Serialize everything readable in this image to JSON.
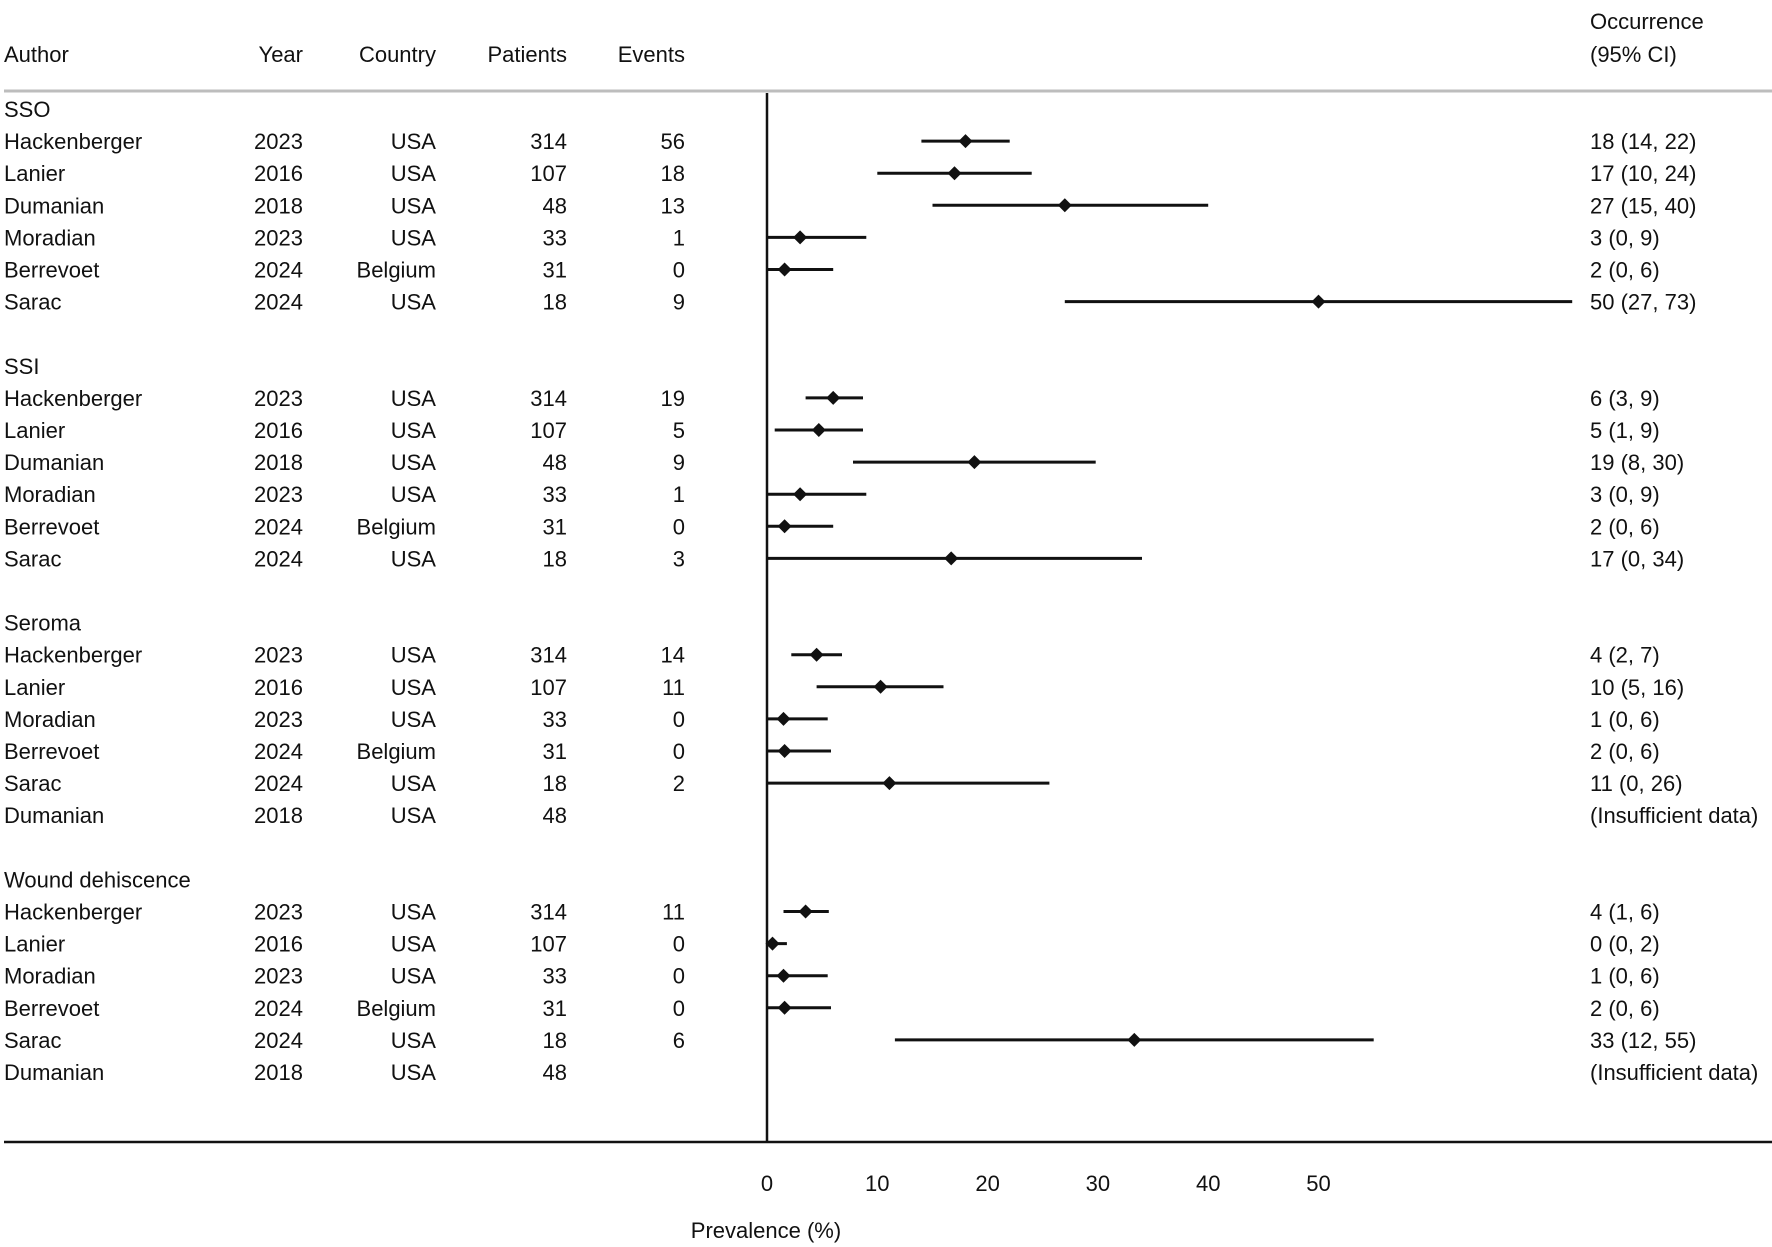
{
  "columns": {
    "author": "Author",
    "year": "Year",
    "country": "Country",
    "patients": "Patients",
    "events": "Events",
    "occurrence_line1": "Occurrence",
    "occurrence_line2": "(95% CI)"
  },
  "chart_data": {
    "type": "forest",
    "xlabel": "Prevalence (%)",
    "xlim": [
      0,
      73
    ],
    "xticks": [
      0,
      10,
      20,
      30,
      40,
      50
    ],
    "grid": false,
    "groups": [
      {
        "name": "SSO",
        "rows": [
          {
            "author": "Hackenberger",
            "year": "2023",
            "country": "USA",
            "patients": "314",
            "events": "56",
            "est": 18,
            "lo": 14,
            "hi": 22,
            "label": "18 (14, 22)"
          },
          {
            "author": "Lanier",
            "year": "2016",
            "country": "USA",
            "patients": "107",
            "events": "18",
            "est": 17,
            "lo": 10,
            "hi": 24,
            "label": "17 (10, 24)"
          },
          {
            "author": "Dumanian",
            "year": "2018",
            "country": "USA",
            "patients": "48",
            "events": "13",
            "est": 27,
            "lo": 15,
            "hi": 40,
            "label": "27 (15, 40)"
          },
          {
            "author": "Moradian",
            "year": "2023",
            "country": "USA",
            "patients": "33",
            "events": "1",
            "est": 3,
            "lo": 0,
            "hi": 9,
            "label": "3 (0, 9)"
          },
          {
            "author": "Berrevoet",
            "year": "2024",
            "country": "Belgium",
            "patients": "31",
            "events": "0",
            "est": 1.6,
            "lo": 0,
            "hi": 6,
            "label": "2 (0, 6)"
          },
          {
            "author": "Sarac",
            "year": "2024",
            "country": "USA",
            "patients": "18",
            "events": "9",
            "est": 50,
            "lo": 27,
            "hi": 73,
            "label": "50 (27, 73)"
          }
        ]
      },
      {
        "name": "SSI",
        "rows": [
          {
            "author": "Hackenberger",
            "year": "2023",
            "country": "USA",
            "patients": "314",
            "events": "19",
            "est": 6,
            "lo": 3.5,
            "hi": 8.7,
            "label": "6 (3, 9)"
          },
          {
            "author": "Lanier",
            "year": "2016",
            "country": "USA",
            "patients": "107",
            "events": "5",
            "est": 4.7,
            "lo": 0.7,
            "hi": 8.7,
            "label": "5 (1, 9)"
          },
          {
            "author": "Dumanian",
            "year": "2018",
            "country": "USA",
            "patients": "48",
            "events": "9",
            "est": 18.8,
            "lo": 7.8,
            "hi": 29.8,
            "label": "19 (8, 30)"
          },
          {
            "author": "Moradian",
            "year": "2023",
            "country": "USA",
            "patients": "33",
            "events": "1",
            "est": 3,
            "lo": 0,
            "hi": 9,
            "label": "3 (0, 9)"
          },
          {
            "author": "Berrevoet",
            "year": "2024",
            "country": "Belgium",
            "patients": "31",
            "events": "0",
            "est": 1.6,
            "lo": 0,
            "hi": 6,
            "label": "2 (0, 6)"
          },
          {
            "author": "Sarac",
            "year": "2024",
            "country": "USA",
            "patients": "18",
            "events": "3",
            "est": 16.7,
            "lo": 0,
            "hi": 34,
            "label": "17 (0, 34)"
          }
        ]
      },
      {
        "name": "Seroma",
        "rows": [
          {
            "author": "Hackenberger",
            "year": "2023",
            "country": "USA",
            "patients": "314",
            "events": "14",
            "est": 4.5,
            "lo": 2.2,
            "hi": 6.8,
            "label": "4 (2, 7)"
          },
          {
            "author": "Lanier",
            "year": "2016",
            "country": "USA",
            "patients": "107",
            "events": "11",
            "est": 10.3,
            "lo": 4.5,
            "hi": 16,
            "label": "10 (5, 16)"
          },
          {
            "author": "Moradian",
            "year": "2023",
            "country": "USA",
            "patients": "33",
            "events": "0",
            "est": 1.5,
            "lo": 0,
            "hi": 5.5,
            "label": "1 (0, 6)"
          },
          {
            "author": "Berrevoet",
            "year": "2024",
            "country": "Belgium",
            "patients": "31",
            "events": "0",
            "est": 1.6,
            "lo": 0,
            "hi": 5.8,
            "label": "2 (0, 6)"
          },
          {
            "author": "Sarac",
            "year": "2024",
            "country": "USA",
            "patients": "18",
            "events": "2",
            "est": 11.1,
            "lo": 0,
            "hi": 25.6,
            "label": "11 (0, 26)"
          },
          {
            "author": "Dumanian",
            "year": "2018",
            "country": "USA",
            "patients": "48",
            "events": "",
            "est": null,
            "lo": null,
            "hi": null,
            "label": "(Insufficient data)"
          }
        ]
      },
      {
        "name": "Wound dehiscence",
        "rows": [
          {
            "author": "Hackenberger",
            "year": "2023",
            "country": "USA",
            "patients": "314",
            "events": "11",
            "est": 3.5,
            "lo": 1.5,
            "hi": 5.6,
            "label": "4 (1, 6)"
          },
          {
            "author": "Lanier",
            "year": "2016",
            "country": "USA",
            "patients": "107",
            "events": "0",
            "est": 0.5,
            "lo": 0,
            "hi": 1.8,
            "label": "0 (0, 2)"
          },
          {
            "author": "Moradian",
            "year": "2023",
            "country": "USA",
            "patients": "33",
            "events": "0",
            "est": 1.5,
            "lo": 0,
            "hi": 5.5,
            "label": "1 (0, 6)"
          },
          {
            "author": "Berrevoet",
            "year": "2024",
            "country": "Belgium",
            "patients": "31",
            "events": "0",
            "est": 1.6,
            "lo": 0,
            "hi": 5.8,
            "label": "2 (0, 6)"
          },
          {
            "author": "Sarac",
            "year": "2024",
            "country": "USA",
            "patients": "18",
            "events": "6",
            "est": 33.3,
            "lo": 11.6,
            "hi": 55,
            "label": "33 (12, 55)"
          },
          {
            "author": "Dumanian",
            "year": "2018",
            "country": "USA",
            "patients": "48",
            "events": "",
            "est": null,
            "lo": null,
            "hi": null,
            "label": "(Insufficient data)"
          }
        ]
      }
    ]
  }
}
